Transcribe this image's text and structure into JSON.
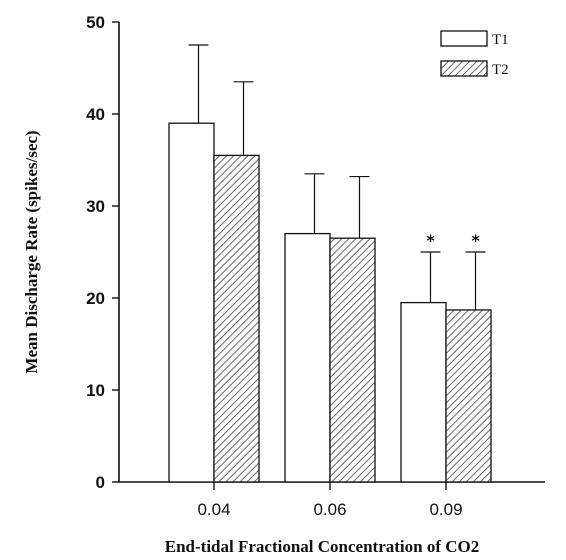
{
  "chart_data": {
    "type": "bar",
    "categories": [
      "0.04",
      "0.06",
      "0.09"
    ],
    "series": [
      {
        "name": "T1",
        "values": [
          39,
          27,
          19.5
        ],
        "errors": [
          8.5,
          6.5,
          5.5
        ],
        "significant": [
          false,
          false,
          true
        ],
        "fill": "#ffffff"
      },
      {
        "name": "T2",
        "values": [
          35.5,
          26.5,
          18.7
        ],
        "errors": [
          8,
          6.7,
          6.3
        ],
        "significant": [
          false,
          false,
          true
        ],
        "fill": "hatched"
      }
    ],
    "yticks": [
      "0",
      "10",
      "20",
      "30",
      "40",
      "50"
    ],
    "ylim": [
      0,
      50
    ],
    "xlabel": "End-tidal Fractional Concentration of CO2",
    "ylabel": "Mean Discharge Rate (spikes/sec)",
    "significance_marker": "*",
    "legend": {
      "position": "top-right",
      "entries": [
        "T1",
        "T2"
      ]
    },
    "grid": false
  }
}
